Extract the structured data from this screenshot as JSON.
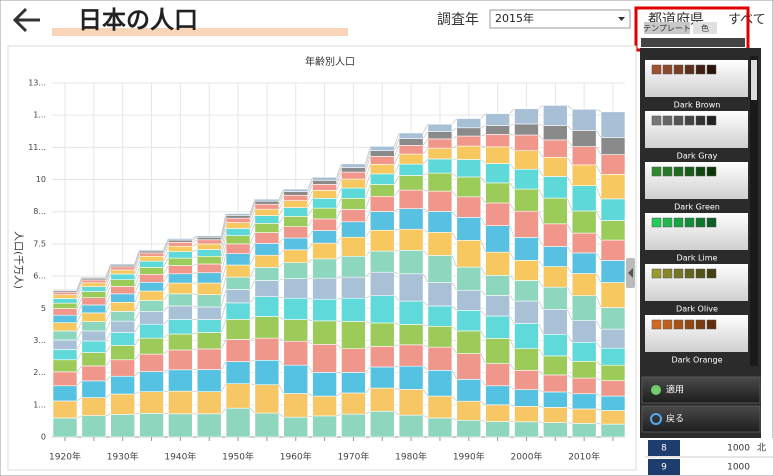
{
  "header": {
    "title": "日本の人口",
    "year_label": "調査年",
    "year_value": "2015年",
    "pref_label": "都道府県",
    "pref_value": "すべて"
  },
  "palette_panel": {
    "tabs": [
      "テンプレート",
      "色"
    ],
    "themes": [
      {
        "name": "Dark Brown",
        "colors": [
          "#a0522d",
          "#8b4a2b",
          "#7a3f22",
          "#5e2f18",
          "#3f1f10",
          "#2a150a"
        ]
      },
      {
        "name": "Dark Gray",
        "colors": [
          "#777777",
          "#666666",
          "#555555",
          "#444444",
          "#333333",
          "#222222"
        ]
      },
      {
        "name": "Dark Green",
        "colors": [
          "#2e8b2e",
          "#267a26",
          "#1f6b1f",
          "#185a18",
          "#104810",
          "#0a360a"
        ]
      },
      {
        "name": "Dark Lime",
        "colors": [
          "#22cc55",
          "#1fb84c",
          "#1aa342",
          "#158d38",
          "#10752e",
          "#0b5e24"
        ]
      },
      {
        "name": "Dark Olive",
        "colors": [
          "#9a9a30",
          "#88882a",
          "#767624",
          "#64641e",
          "#525218",
          "#404012"
        ]
      },
      {
        "name": "Dark Orange",
        "colors": [
          "#d2691e",
          "#c05e1a",
          "#a85216",
          "#904612",
          "#783a0e",
          "#602e0a"
        ]
      }
    ],
    "buttons": [
      "適用",
      "戻る"
    ]
  },
  "table_fragment": {
    "rows": [
      [
        "8",
        "1000",
        "北"
      ],
      [
        "9",
        "1000"
      ]
    ]
  },
  "chart_data": {
    "type": "stacked_bar",
    "title": "年齢別人口",
    "y_label": "人口(千万人)",
    "categories": [
      "1920年",
      null,
      "1930年",
      null,
      "1940年",
      null,
      "1950年",
      null,
      "1960年",
      null,
      "1970年",
      null,
      "1980年",
      null,
      "1990年",
      null,
      "2000年",
      null,
      "2010年",
      null
    ],
    "ylim": [
      0,
      13.75
    ],
    "yticks": [
      0,
      {
        "value": 1.25,
        "label": "1..."
      },
      {
        "value": 2.5,
        "label": "2..."
      },
      {
        "value": 3.75,
        "label": "3..."
      },
      5,
      {
        "value": 6.25,
        "label": "6..."
      },
      7.5,
      {
        "value": 8.75,
        "label": "8..."
      },
      10,
      {
        "value": 11.25,
        "label": "11..."
      },
      {
        "value": 12.5,
        "label": "1..."
      },
      {
        "value": 13.75,
        "label": "13..."
      }
    ],
    "grid": true,
    "series": [
      {
        "color": "#8fd6be",
        "values": [
          0.74,
          0.83,
          0.88,
          0.92,
          0.9,
          0.9,
          1.12,
          0.93,
          0.77,
          0.82,
          0.89,
          1.0,
          0.85,
          0.74,
          0.65,
          0.6,
          0.59,
          0.56,
          0.53,
          0.5
        ]
      },
      {
        "color": "#f7c766",
        "values": [
          0.66,
          0.7,
          0.79,
          0.84,
          0.88,
          0.86,
          0.95,
          1.1,
          0.92,
          0.77,
          0.82,
          0.9,
          1.0,
          0.85,
          0.74,
          0.65,
          0.6,
          0.59,
          0.56,
          0.53
        ]
      },
      {
        "color": "#56c2e2",
        "values": [
          0.59,
          0.65,
          0.69,
          0.78,
          0.83,
          0.86,
          0.86,
          0.95,
          1.1,
          0.92,
          0.8,
          0.82,
          0.9,
          1.0,
          0.85,
          0.74,
          0.65,
          0.6,
          0.59,
          0.56
        ]
      },
      {
        "color": "#f0978c",
        "values": [
          0.54,
          0.58,
          0.64,
          0.68,
          0.77,
          0.8,
          0.86,
          0.86,
          0.93,
          1.09,
          0.92,
          0.8,
          0.83,
          0.9,
          1.0,
          0.86,
          0.75,
          0.66,
          0.61,
          0.6
        ]
      },
      {
        "color": "#9ccb5a",
        "values": [
          0.47,
          0.52,
          0.56,
          0.62,
          0.62,
          0.64,
          0.78,
          0.84,
          0.84,
          0.91,
          1.06,
          0.91,
          0.79,
          0.81,
          0.88,
          0.98,
          0.84,
          0.74,
          0.65,
          0.6
        ]
      },
      {
        "color": "#5fd9d9",
        "values": [
          0.4,
          0.45,
          0.5,
          0.54,
          0.57,
          0.5,
          0.64,
          0.77,
          0.83,
          0.84,
          0.9,
          1.06,
          0.91,
          0.79,
          0.8,
          0.87,
          0.98,
          0.84,
          0.74,
          0.66
        ]
      },
      {
        "color": "#a9c1d6",
        "values": [
          0.37,
          0.39,
          0.44,
          0.49,
          0.52,
          0.49,
          0.52,
          0.63,
          0.76,
          0.82,
          0.82,
          0.91,
          1.06,
          0.91,
          0.78,
          0.8,
          0.87,
          0.97,
          0.84,
          0.74
        ]
      },
      {
        "color": "#8dd7bf",
        "values": [
          0.35,
          0.36,
          0.38,
          0.43,
          0.47,
          0.48,
          0.48,
          0.51,
          0.62,
          0.75,
          0.81,
          0.82,
          0.91,
          1.05,
          0.9,
          0.78,
          0.8,
          0.86,
          0.97,
          0.84
        ]
      },
      {
        "color": "#f6c85f",
        "values": [
          0.32,
          0.34,
          0.35,
          0.37,
          0.42,
          0.45,
          0.47,
          0.47,
          0.5,
          0.61,
          0.74,
          0.81,
          0.82,
          0.9,
          1.04,
          0.9,
          0.78,
          0.8,
          0.86,
          0.97
        ]
      },
      {
        "color": "#58c0e0",
        "values": [
          0.29,
          0.31,
          0.33,
          0.34,
          0.36,
          0.4,
          0.44,
          0.46,
          0.46,
          0.49,
          0.6,
          0.73,
          0.8,
          0.81,
          0.89,
          1.03,
          0.89,
          0.78,
          0.8,
          0.86
        ]
      },
      {
        "color": "#f0968b",
        "values": [
          0.26,
          0.28,
          0.29,
          0.31,
          0.32,
          0.34,
          0.38,
          0.42,
          0.44,
          0.45,
          0.48,
          0.59,
          0.72,
          0.79,
          0.8,
          0.88,
          1.02,
          0.88,
          0.77,
          0.79
        ]
      },
      {
        "color": "#9bcb58",
        "values": [
          0.21,
          0.24,
          0.26,
          0.27,
          0.29,
          0.3,
          0.32,
          0.36,
          0.4,
          0.42,
          0.43,
          0.46,
          0.57,
          0.7,
          0.77,
          0.78,
          0.86,
          1.0,
          0.86,
          0.76
        ]
      },
      {
        "color": "#5ed9d9",
        "values": [
          0.18,
          0.19,
          0.22,
          0.24,
          0.25,
          0.26,
          0.28,
          0.3,
          0.34,
          0.38,
          0.4,
          0.41,
          0.44,
          0.55,
          0.68,
          0.75,
          0.77,
          0.84,
          0.98,
          0.84
        ]
      },
      {
        "color": "#f6c85f",
        "values": [
          0.15,
          0.15,
          0.16,
          0.19,
          0.21,
          0.22,
          0.23,
          0.25,
          0.27,
          0.31,
          0.35,
          0.37,
          0.39,
          0.42,
          0.52,
          0.65,
          0.72,
          0.74,
          0.81,
          0.95
        ]
      },
      {
        "color": "#f0968b",
        "values": [
          0.1,
          0.11,
          0.12,
          0.13,
          0.15,
          0.16,
          0.17,
          0.19,
          0.21,
          0.23,
          0.27,
          0.31,
          0.34,
          0.36,
          0.39,
          0.48,
          0.61,
          0.68,
          0.71,
          0.77
        ]
      },
      {
        "color": "#8a8a8a",
        "values": [
          0.06,
          0.07,
          0.07,
          0.08,
          0.09,
          0.1,
          0.11,
          0.12,
          0.14,
          0.16,
          0.18,
          0.22,
          0.26,
          0.29,
          0.32,
          0.35,
          0.43,
          0.56,
          0.63,
          0.66
        ]
      },
      {
        "color": "#a7c0d5",
        "values": [
          0.04,
          0.04,
          0.05,
          0.05,
          0.06,
          0.06,
          0.07,
          0.08,
          0.1,
          0.12,
          0.14,
          0.17,
          0.22,
          0.28,
          0.36,
          0.46,
          0.59,
          0.78,
          0.82,
          1.0
        ]
      }
    ]
  }
}
